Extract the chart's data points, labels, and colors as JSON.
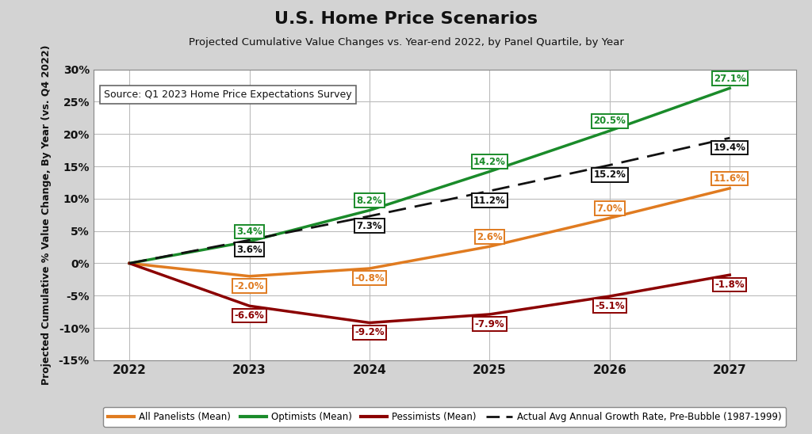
{
  "title": "U.S. Home Price Scenarios",
  "subtitle": "Projected Cumulative Value Changes vs. Year-end 2022, by Panel Quartile, by Year",
  "ylabel": "Projected Cumulative % Value Change, By Year (vs. Q4 2022)",
  "source_text": "Source: Q1 2023 Home Price Expectations Survey",
  "years": [
    2022,
    2023,
    2024,
    2025,
    2026,
    2027
  ],
  "all_panelists": [
    0.0,
    -2.0,
    -0.8,
    2.6,
    7.0,
    11.6
  ],
  "optimists": [
    0.0,
    3.4,
    8.2,
    14.2,
    20.5,
    27.1
  ],
  "pessimists": [
    0.0,
    -6.6,
    -9.2,
    -7.9,
    -5.1,
    -1.8
  ],
  "dashed": [
    0.0,
    3.6,
    7.3,
    11.2,
    15.2,
    19.4
  ],
  "all_panelists_color": "#E07B20",
  "optimists_color": "#1A8B2A",
  "pessimists_color": "#8B0000",
  "dashed_color": "#111111",
  "background_color": "#D3D3D3",
  "plot_bg_color": "#FFFFFF",
  "ylim": [
    -15,
    30
  ],
  "yticks": [
    -15,
    -10,
    -5,
    0,
    5,
    10,
    15,
    20,
    25,
    30
  ],
  "ytick_labels": [
    "-15%",
    "-10%",
    "-5%",
    "0%",
    "5%",
    "10%",
    "15%",
    "20%",
    "25%",
    "30%"
  ],
  "label_all_panelists": "All Panelists (Mean)",
  "label_optimists": "Optimists (Mean)",
  "label_pessimists": "Pessimists (Mean)",
  "label_dashed": "Actual Avg Annual Growth Rate, Pre-Bubble (1987-1999)",
  "ann_all_x": [
    2023,
    2024,
    2025,
    2026,
    2027
  ],
  "ann_all_y": [
    -2.0,
    -0.8,
    2.6,
    7.0,
    11.6
  ],
  "ann_all_labels": [
    "-2.0%",
    "-0.8%",
    "2.6%",
    "7.0%",
    "11.6%"
  ],
  "ann_opt_x": [
    2023,
    2024,
    2025,
    2026,
    2027
  ],
  "ann_opt_y": [
    3.4,
    8.2,
    14.2,
    20.5,
    27.1
  ],
  "ann_opt_labels": [
    "3.4%",
    "8.2%",
    "14.2%",
    "20.5%",
    "27.1%"
  ],
  "ann_pess_x": [
    2023,
    2024,
    2025,
    2026,
    2027
  ],
  "ann_pess_y": [
    -6.6,
    -9.2,
    -7.9,
    -5.1,
    -1.8
  ],
  "ann_pess_labels": [
    "-6.6%",
    "-9.2%",
    "-7.9%",
    "-5.1%",
    "-1.8%"
  ],
  "ann_dash_x": [
    2023,
    2024,
    2025,
    2026,
    2027
  ],
  "ann_dash_y": [
    3.6,
    7.3,
    11.2,
    15.2,
    19.4
  ],
  "ann_dash_labels": [
    "3.6%",
    "7.3%",
    "11.2%",
    "15.2%",
    "19.4%"
  ]
}
